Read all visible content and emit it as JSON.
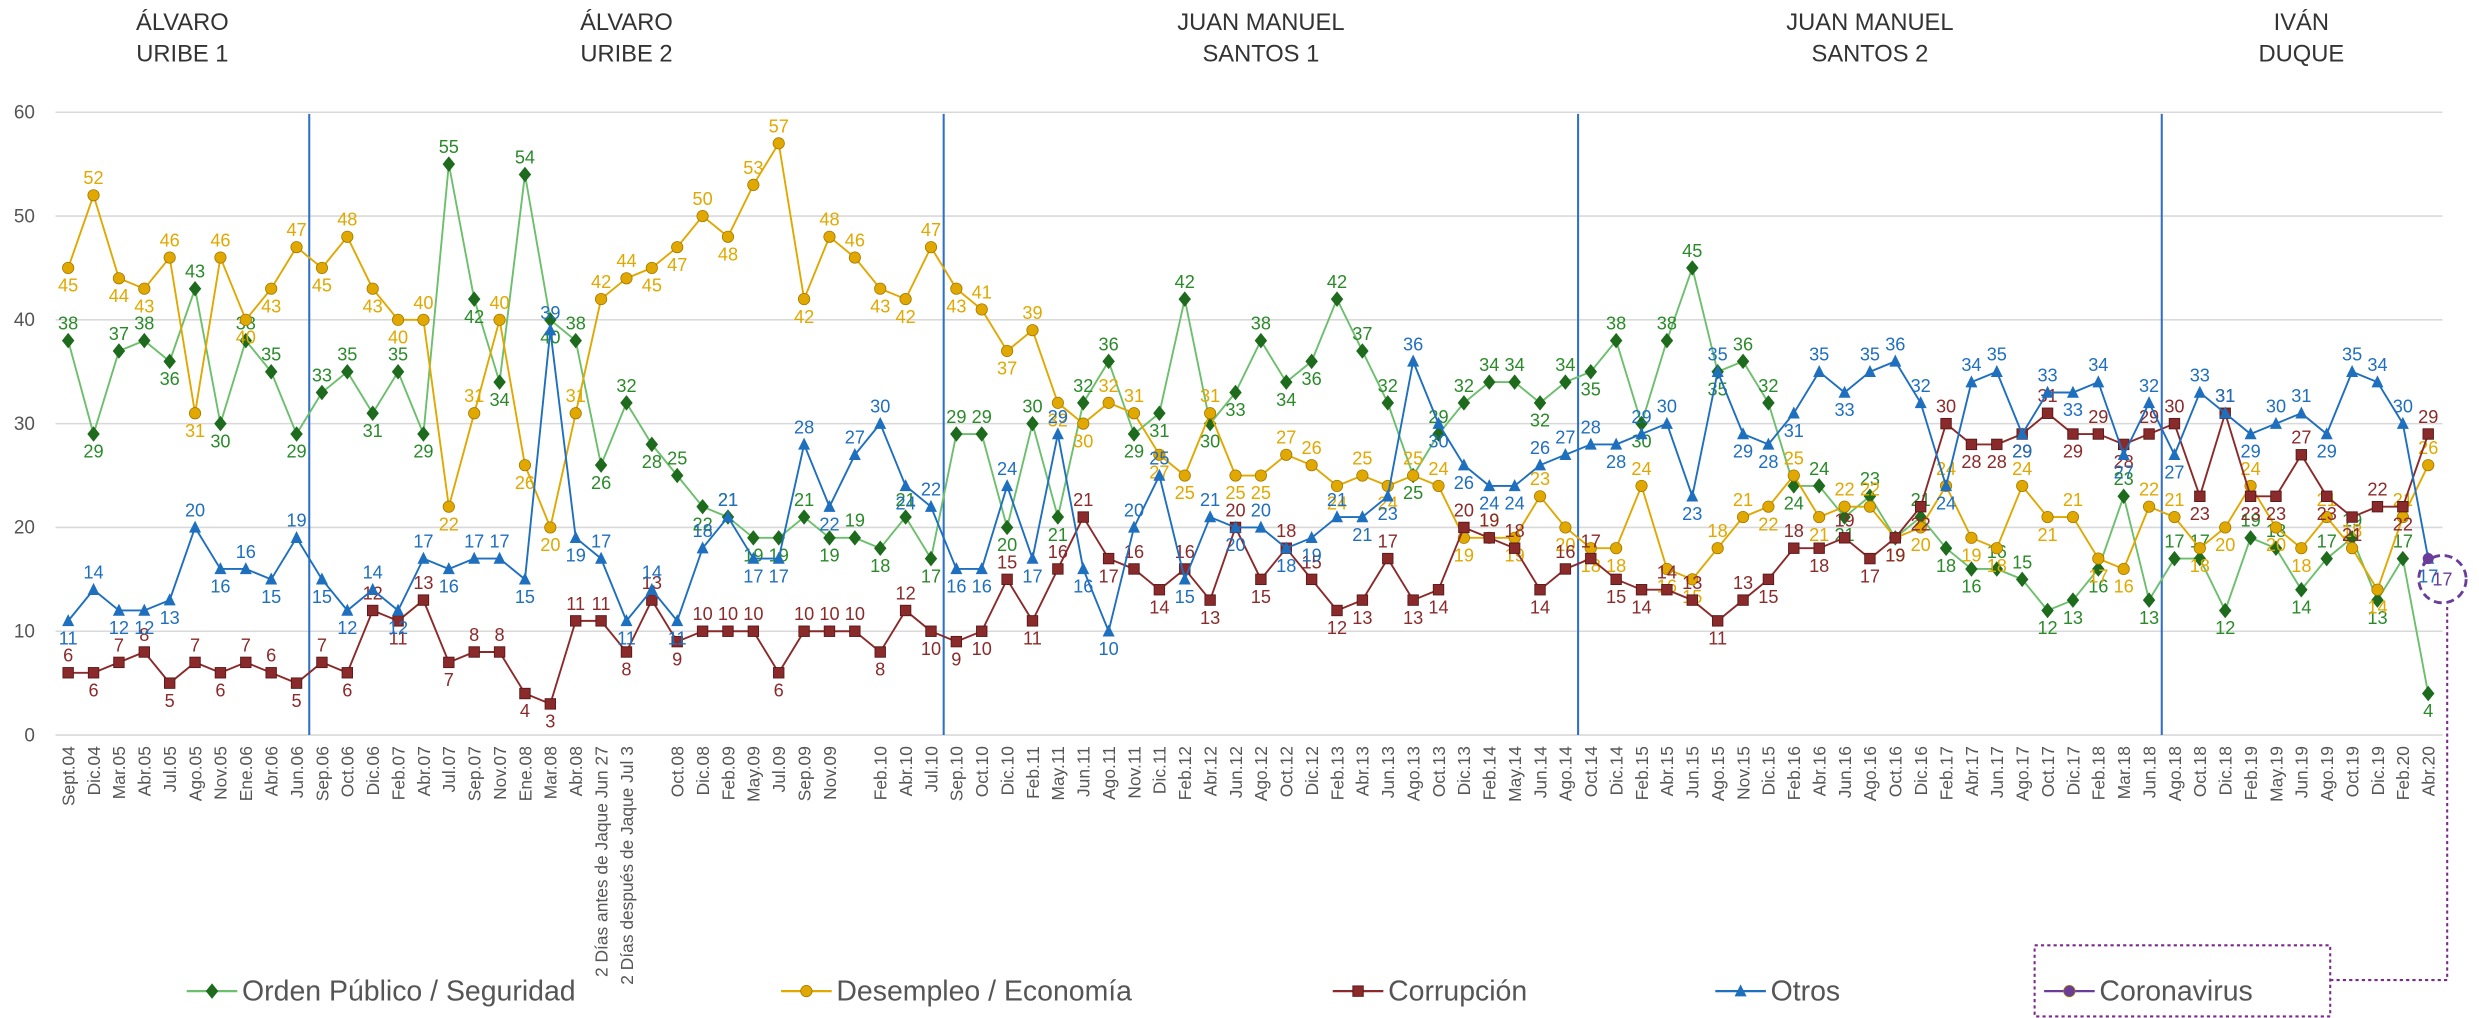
{
  "chart_data": {
    "type": "line",
    "periods": [
      {
        "lines": [
          "ÁLVARO",
          "URIBE 1"
        ],
        "from": "Sept.04"
      },
      {
        "lines": [
          "ÁLVARO",
          "URIBE 2"
        ],
        "from": "Sep.06"
      },
      {
        "lines": [
          "JUAN MANUEL",
          "SANTOS 1"
        ],
        "from": "Sep.10"
      },
      {
        "lines": [
          "JUAN MANUEL",
          "SANTOS 2"
        ],
        "from": "Oct.14"
      },
      {
        "lines": [
          "IVÁN",
          "DUQUE"
        ],
        "from": "Ago.18"
      }
    ],
    "categories": [
      "Sept.04",
      "Dic.04",
      "Mar.05",
      "Abr.05",
      "Jul.05",
      "Ago.05",
      "Nov.05",
      "Ene.06",
      "Abr.06",
      "Jun.06",
      "Sep.06",
      "Oct.06",
      "Dic.06",
      "Feb.07",
      "Abr.07",
      "Jul.07",
      "Sep.07",
      "Nov.07",
      "Ene.08",
      "Mar.08",
      "Abr.08",
      "2 Días antes de Jaque Jun 27",
      "2 Días después de Jaque Jul 3",
      null,
      "Oct.08",
      "Dic.08",
      "Feb.09",
      "May.09",
      "Jul.09",
      "Sep.09",
      "Nov.09",
      null,
      "Feb.10",
      "Abr.10",
      "Jul.10",
      "Sep.10",
      "Oct.10",
      "Dic.10",
      "Feb.11",
      "May.11",
      "Jun.11",
      "Ago.11",
      "Nov.11",
      "Dic.11",
      "Feb.12",
      "Abr.12",
      "Jun.12",
      "Ago.12",
      "Oct.12",
      "Dic.12",
      "Feb.13",
      "Abr.13",
      "Jun.13",
      "Ago.13",
      "Oct.13",
      "Dic.13",
      "Feb.14",
      "May.14",
      "Jun.14",
      "Ago.14",
      "Oct.14",
      "Dic.14",
      "Feb.15",
      "Abr.15",
      "Jun.15",
      "Ago.15",
      "Nov.15",
      "Dic.15",
      "Feb.16",
      "Abr.16",
      "Jun.16",
      "Ago.16",
      "Oct.16",
      "Dic.16",
      "Feb.17",
      "Abr.17",
      "Jun.17",
      "Ago.17",
      "Oct.17",
      "Dic.17",
      "Feb.18",
      "Mar.18",
      "Jun.18",
      "Ago.18",
      "Oct.18",
      "Dic.18",
      "Feb.19",
      "May.19",
      "Jun.19",
      "Ago.19",
      "Oct.19",
      "Dic.19",
      "Feb.20",
      "Abr.20"
    ],
    "series": [
      {
        "name": "Orden Público / Seguridad",
        "color": "#2a8a2a",
        "marker": "diamond",
        "values": [
          38,
          29,
          37,
          38,
          36,
          43,
          30,
          38,
          35,
          29,
          33,
          35,
          31,
          35,
          29,
          55,
          42,
          34,
          54,
          40,
          38,
          26,
          32,
          28,
          25,
          22,
          21,
          19,
          19,
          21,
          19,
          19,
          18,
          21,
          17,
          29,
          29,
          20,
          30,
          21,
          32,
          36,
          29,
          31,
          42,
          30,
          33,
          38,
          34,
          36,
          42,
          37,
          32,
          25,
          29,
          32,
          34,
          34,
          32,
          34,
          35,
          38,
          30,
          38,
          45,
          35,
          36,
          32,
          24,
          24,
          21,
          23,
          19,
          21,
          18,
          16,
          16,
          15,
          12,
          13,
          16,
          23,
          13,
          17,
          17,
          12,
          19,
          18,
          14,
          17,
          19,
          13,
          17,
          4
        ]
      },
      {
        "name": "Desempleo / Economía",
        "color": "#e0a800",
        "marker": "circle",
        "values": [
          45,
          52,
          44,
          43,
          46,
          31,
          46,
          40,
          43,
          47,
          45,
          48,
          43,
          40,
          40,
          22,
          31,
          40,
          26,
          20,
          31,
          42,
          44,
          45,
          47,
          50,
          48,
          53,
          57,
          42,
          48,
          46,
          43,
          42,
          47,
          43,
          41,
          37,
          39,
          32,
          30,
          32,
          31,
          27,
          25,
          31,
          25,
          25,
          27,
          26,
          24,
          25,
          24,
          25,
          24,
          19,
          19,
          19,
          23,
          20,
          18,
          18,
          24,
          16,
          15,
          18,
          21,
          22,
          25,
          21,
          22,
          22,
          19,
          20,
          24,
          19,
          18,
          24,
          21,
          21,
          17,
          16,
          22,
          21,
          18,
          20,
          24,
          20,
          18,
          21,
          18,
          14,
          21,
          26
        ]
      },
      {
        "name": "Corrupción",
        "color": "#8b2a2a",
        "marker": "square",
        "values": [
          6,
          6,
          7,
          8,
          5,
          7,
          6,
          7,
          6,
          5,
          7,
          6,
          12,
          11,
          13,
          7,
          8,
          8,
          4,
          3,
          11,
          11,
          8,
          13,
          9,
          10,
          10,
          10,
          6,
          10,
          10,
          10,
          8,
          12,
          10,
          9,
          10,
          15,
          11,
          16,
          21,
          17,
          16,
          14,
          16,
          13,
          20,
          15,
          18,
          15,
          12,
          13,
          17,
          13,
          14,
          20,
          19,
          18,
          14,
          16,
          17,
          15,
          14,
          14,
          13,
          11,
          13,
          15,
          18,
          18,
          19,
          17,
          19,
          22,
          30,
          28,
          28,
          29,
          31,
          29,
          29,
          28,
          29,
          30,
          23,
          31,
          23,
          23,
          27,
          23,
          21,
          22,
          22,
          29
        ]
      },
      {
        "name": "Otros",
        "color": "#1f6fbf",
        "marker": "triangle",
        "values": [
          11,
          14,
          12,
          12,
          13,
          20,
          16,
          16,
          15,
          19,
          15,
          12,
          14,
          12,
          17,
          16,
          17,
          17,
          15,
          39,
          19,
          17,
          11,
          14,
          11,
          18,
          21,
          17,
          17,
          28,
          22,
          27,
          30,
          24,
          22,
          16,
          16,
          24,
          17,
          29,
          16,
          10,
          20,
          25,
          15,
          21,
          20,
          20,
          18,
          19,
          21,
          21,
          23,
          36,
          30,
          26,
          24,
          24,
          26,
          27,
          28,
          28,
          29,
          30,
          23,
          35,
          29,
          28,
          31,
          35,
          33,
          35,
          36,
          32,
          24,
          34,
          35,
          29,
          33,
          33,
          34,
          27,
          32,
          27,
          33,
          31,
          29,
          30,
          31,
          29,
          35,
          34,
          30,
          17
        ]
      },
      {
        "name": "Coronavirus",
        "color": "#6a3d9a",
        "marker": "circle",
        "values": [
          null,
          null,
          null,
          null,
          null,
          null,
          null,
          null,
          null,
          null,
          null,
          null,
          null,
          null,
          null,
          null,
          null,
          null,
          null,
          null,
          null,
          null,
          null,
          null,
          null,
          null,
          null,
          null,
          null,
          null,
          null,
          null,
          null,
          null,
          null,
          null,
          null,
          null,
          null,
          null,
          null,
          null,
          null,
          null,
          null,
          null,
          null,
          null,
          null,
          null,
          null,
          null,
          null,
          null,
          null,
          null,
          null,
          null,
          null,
          null,
          null,
          null,
          null,
          null,
          null,
          null,
          null,
          null,
          null,
          null,
          null,
          null,
          null,
          null,
          null,
          null,
          null,
          null,
          null,
          null,
          null,
          null,
          null,
          null,
          null,
          null,
          null,
          null,
          null,
          null,
          null,
          null,
          null,
          17
        ]
      }
    ],
    "ylim": [
      0,
      60
    ],
    "yticks": [
      0,
      10,
      20,
      30,
      40,
      50,
      60
    ],
    "grid": true
  }
}
